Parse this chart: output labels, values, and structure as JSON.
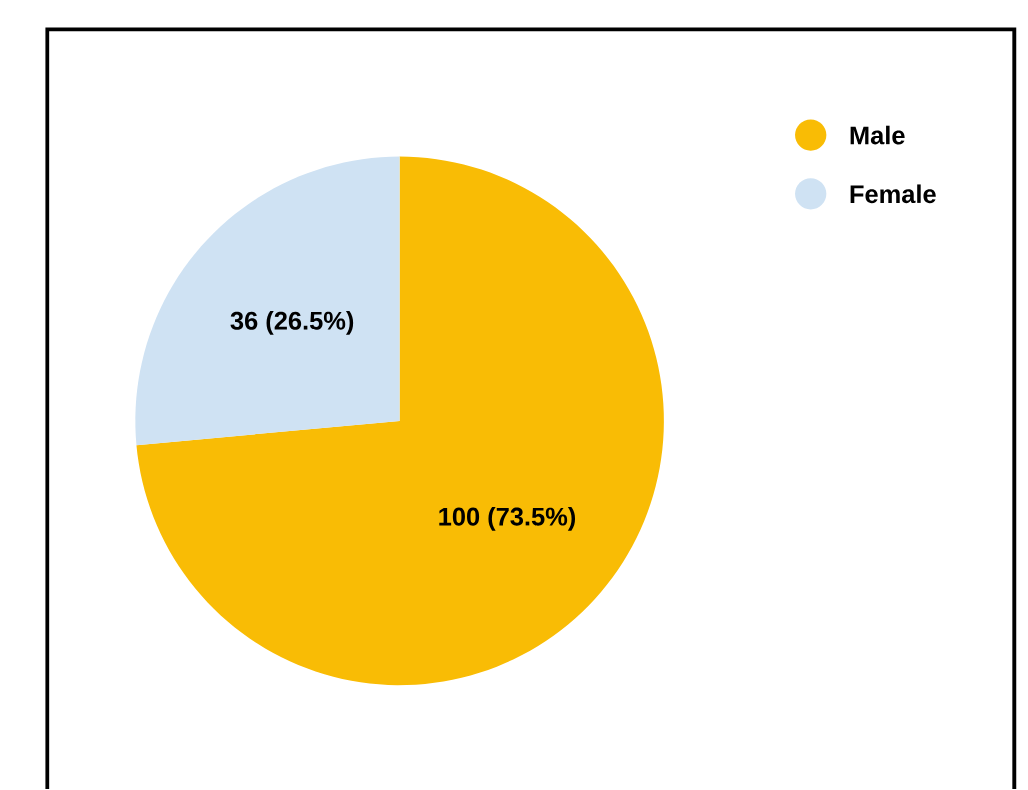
{
  "chart_data": {
    "type": "pie",
    "categories": [
      "Male",
      "Female"
    ],
    "values": [
      100,
      36
    ],
    "colors": [
      "#f9bc05",
      "#cfe2f3"
    ],
    "value_labels": [
      "100 (73.5%)",
      "36 (26.5%)"
    ],
    "legend": "top right"
  }
}
